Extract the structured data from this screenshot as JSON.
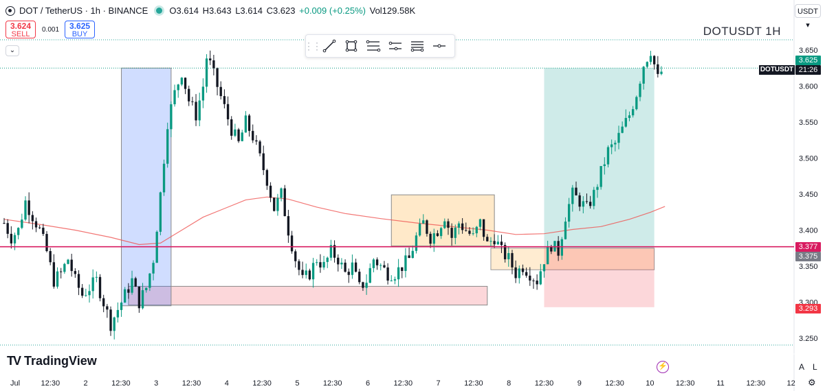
{
  "header": {
    "symbol": "DOT / TetherUS · 1h · BINANCE",
    "open": "O3.614",
    "high": "H3.643",
    "low": "L3.614",
    "close": "C3.623",
    "change": "+0.009 (+0.25%)",
    "volume": "Vol129.58K"
  },
  "trade": {
    "sell_price": "3.624",
    "sell_label": "SELL",
    "spread": "0.001",
    "buy_price": "3.625",
    "buy_label": "BUY"
  },
  "collapse_icon": "chevron-down-icon",
  "toolbar": {
    "tools": [
      "drag-grip-icon",
      "trend-line-icon",
      "rectangle-icon",
      "fib-retracement-icon",
      "position-icon",
      "horizontal-lines-icon",
      "horizontal-ray-icon"
    ]
  },
  "symbol_title": "DOTUSDT  1H",
  "quote_currency": "USDT ▾",
  "watermark": "TradingView",
  "price_tags": {
    "current": "3.625",
    "countdown": "21:26",
    "symbol": "DOTUSDT",
    "pink_level": "3.377",
    "entry_level": "3.375",
    "stop_level": "3.293"
  },
  "corner_buttons": {
    "auto": "A",
    "log": "L"
  },
  "colors": {
    "up": "#089981",
    "down": "#131722",
    "ma": "#ef5350",
    "blue_box": "#2962ff",
    "pink_line": "#d81b60",
    "target_zone": "#26a69a",
    "stop_zone": "#f23645",
    "range_box": "#ffb74d"
  },
  "chart_data": {
    "type": "candlestick",
    "symbol": "DOTUSDT",
    "timeframe": "1H",
    "ylim": [
      3.22,
      3.67
    ],
    "y_ticks": [
      3.25,
      3.3,
      3.35,
      3.4,
      3.45,
      3.5,
      3.55,
      3.6,
      3.65
    ],
    "y_tick_labels": [
      "3.250",
      "3.300",
      "3.350",
      "3.400",
      "3.450",
      "3.500",
      "3.550",
      "3.600",
      "3.650"
    ],
    "x_tick_labels": [
      "Jul",
      "12:30",
      "2",
      "12:30",
      "3",
      "12:30",
      "4",
      "12:30",
      "5",
      "12:30",
      "6",
      "12:30",
      "7",
      "12:30",
      "8",
      "12:30",
      "9",
      "12:30",
      "10",
      "12:30",
      "11",
      "12:30",
      "12"
    ],
    "close_path": [
      [
        0,
        3.41
      ],
      [
        2,
        3.39
      ],
      [
        4,
        3.4
      ],
      [
        6,
        3.44
      ],
      [
        8,
        3.42
      ],
      [
        10,
        3.4
      ],
      [
        12,
        3.37
      ],
      [
        14,
        3.33
      ],
      [
        16,
        3.34
      ],
      [
        18,
        3.36
      ],
      [
        20,
        3.33
      ],
      [
        22,
        3.31
      ],
      [
        24,
        3.32
      ],
      [
        26,
        3.33
      ],
      [
        28,
        3.3
      ],
      [
        30,
        3.27
      ],
      [
        32,
        3.29
      ],
      [
        34,
        3.31
      ],
      [
        36,
        3.33
      ],
      [
        38,
        3.3
      ],
      [
        40,
        3.32
      ],
      [
        42,
        3.36
      ],
      [
        44,
        3.45
      ],
      [
        46,
        3.55
      ],
      [
        48,
        3.59
      ],
      [
        50,
        3.62
      ],
      [
        52,
        3.58
      ],
      [
        54,
        3.56
      ],
      [
        56,
        3.6
      ],
      [
        57,
        3.64
      ],
      [
        58,
        3.63
      ],
      [
        60,
        3.6
      ],
      [
        62,
        3.57
      ],
      [
        64,
        3.54
      ],
      [
        66,
        3.52
      ],
      [
        68,
        3.55
      ],
      [
        70,
        3.53
      ],
      [
        72,
        3.5
      ],
      [
        74,
        3.47
      ],
      [
        76,
        3.43
      ],
      [
        78,
        3.45
      ],
      [
        80,
        3.4
      ],
      [
        82,
        3.36
      ],
      [
        84,
        3.33
      ],
      [
        86,
        3.34
      ],
      [
        88,
        3.36
      ],
      [
        90,
        3.35
      ],
      [
        92,
        3.37
      ],
      [
        94,
        3.36
      ],
      [
        96,
        3.34
      ],
      [
        98,
        3.35
      ],
      [
        100,
        3.32
      ],
      [
        102,
        3.33
      ],
      [
        104,
        3.36
      ],
      [
        106,
        3.35
      ],
      [
        108,
        3.34
      ],
      [
        110,
        3.34
      ],
      [
        112,
        3.35
      ],
      [
        114,
        3.36
      ],
      [
        116,
        3.39
      ],
      [
        118,
        3.41
      ],
      [
        120,
        3.39
      ],
      [
        122,
        3.4
      ],
      [
        124,
        3.42
      ],
      [
        126,
        3.39
      ],
      [
        128,
        3.41
      ],
      [
        130,
        3.4
      ],
      [
        132,
        3.39
      ],
      [
        134,
        3.41
      ],
      [
        136,
        3.38
      ],
      [
        138,
        3.39
      ],
      [
        140,
        3.37
      ],
      [
        142,
        3.36
      ],
      [
        144,
        3.34
      ],
      [
        146,
        3.35
      ],
      [
        148,
        3.34
      ],
      [
        150,
        3.33
      ],
      [
        152,
        3.36
      ],
      [
        154,
        3.38
      ],
      [
        156,
        3.37
      ],
      [
        158,
        3.42
      ],
      [
        160,
        3.45
      ],
      [
        162,
        3.44
      ],
      [
        164,
        3.43
      ],
      [
        166,
        3.45
      ],
      [
        168,
        3.48
      ],
      [
        170,
        3.51
      ],
      [
        172,
        3.52
      ],
      [
        174,
        3.54
      ],
      [
        176,
        3.56
      ],
      [
        178,
        3.59
      ],
      [
        180,
        3.63
      ],
      [
        182,
        3.65
      ],
      [
        184,
        3.61
      ],
      [
        185,
        3.62
      ]
    ],
    "moving_average": [
      [
        0,
        3.415
      ],
      [
        10,
        3.408
      ],
      [
        20,
        3.4
      ],
      [
        30,
        3.39
      ],
      [
        38,
        3.38
      ],
      [
        44,
        3.382
      ],
      [
        50,
        3.4
      ],
      [
        56,
        3.418
      ],
      [
        62,
        3.43
      ],
      [
        68,
        3.442
      ],
      [
        74,
        3.446
      ],
      [
        80,
        3.443
      ],
      [
        88,
        3.432
      ],
      [
        96,
        3.423
      ],
      [
        106,
        3.416
      ],
      [
        116,
        3.41
      ],
      [
        126,
        3.405
      ],
      [
        136,
        3.4
      ],
      [
        144,
        3.394
      ],
      [
        152,
        3.395
      ],
      [
        160,
        3.401
      ],
      [
        168,
        3.405
      ],
      [
        176,
        3.415
      ],
      [
        182,
        3.425
      ],
      [
        186,
        3.433
      ]
    ],
    "bars_total": 186,
    "horizontal_line": 3.377,
    "zones": {
      "impulse_box": {
        "bar_from": 33,
        "bar_to": 47,
        "price_low": 3.295,
        "price_high": 3.625
      },
      "demand_zone": {
        "bar_from": 35,
        "bar_to": 136,
        "price_low": 3.296,
        "price_high": 3.322
      },
      "range_box": {
        "bar_from": 109,
        "bar_to": 138,
        "price_low": 3.378,
        "price_high": 3.449
      },
      "long_position": {
        "bar_from": 152,
        "bar_to": 183,
        "entry": 3.375,
        "target": 3.625,
        "stop": 3.293
      },
      "entry_shelf": {
        "bar_from": 137,
        "bar_to": 183,
        "price_low": 3.345,
        "price_high": 3.375
      }
    }
  }
}
